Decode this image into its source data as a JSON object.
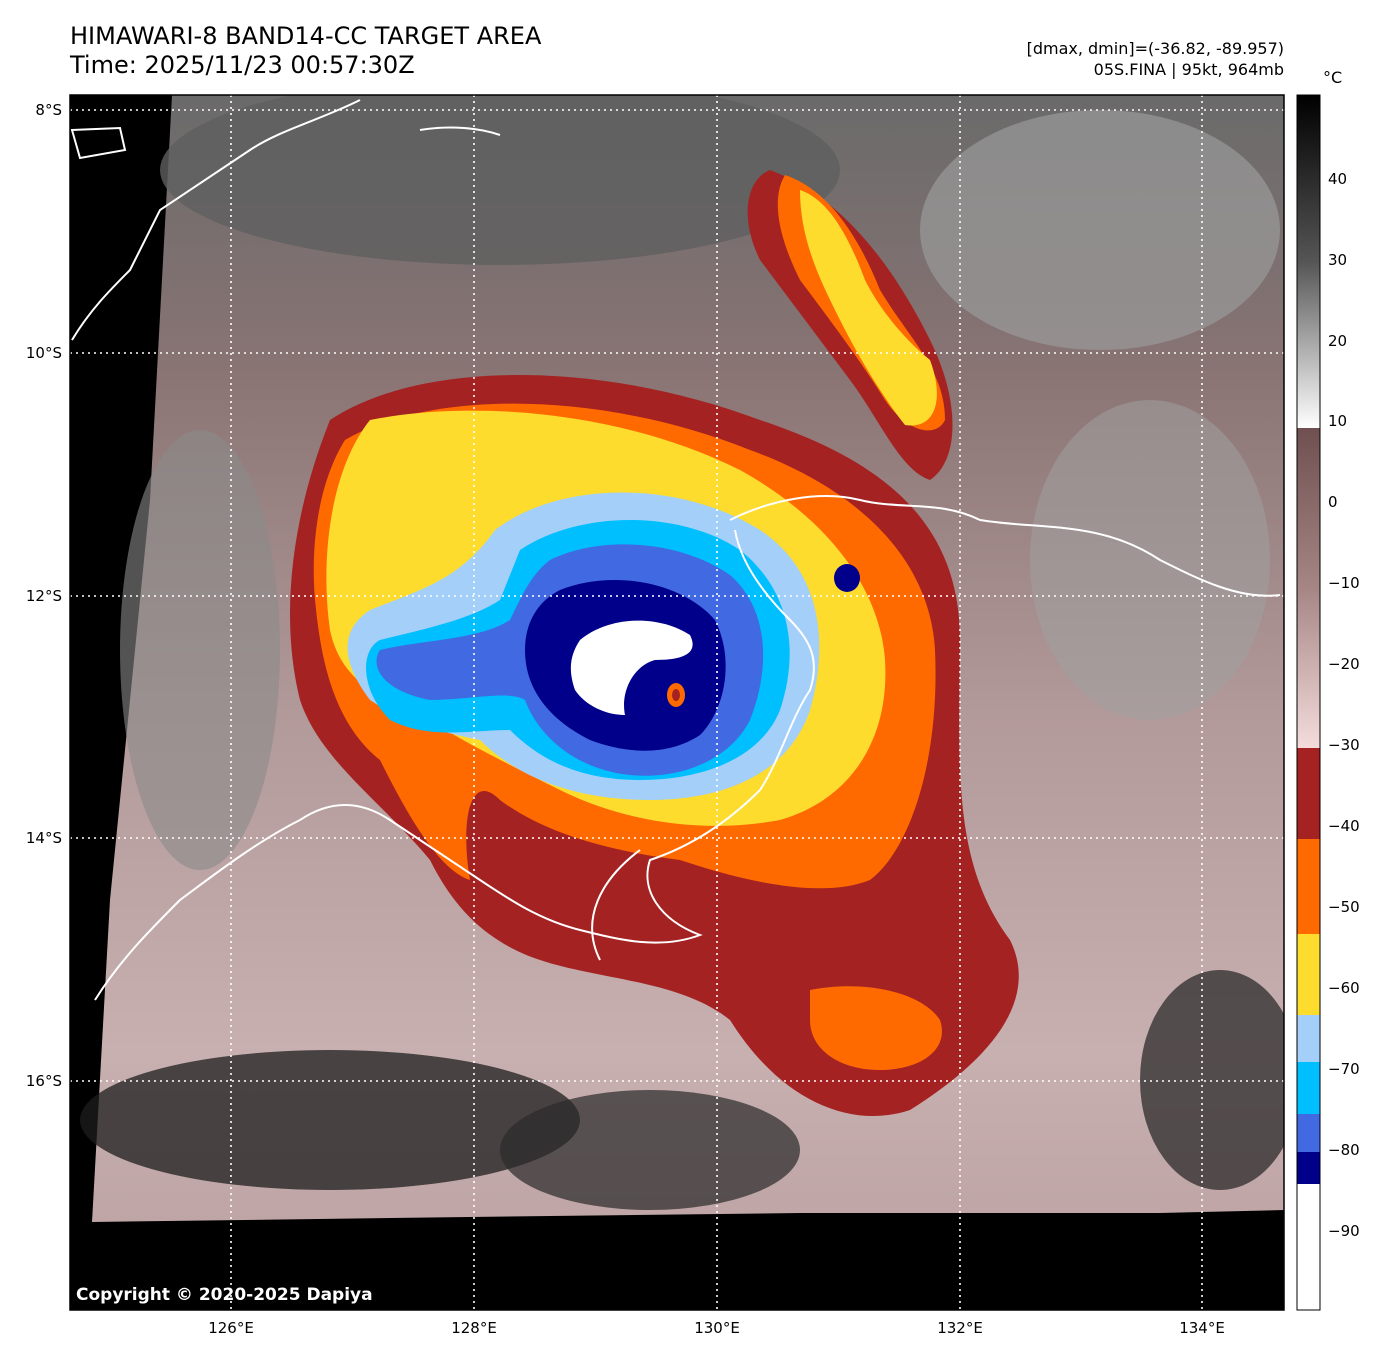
{
  "header": {
    "title": "HIMAWARI-8 BAND14-CC TARGET AREA",
    "time": "Time: 2025/11/23 00:57:30Z",
    "range": "[dmax, dmin]=(-36.82, -89.957)",
    "storm": "05S.FINA | 95kt, 964mb"
  },
  "axes": {
    "lat_labels": [
      "8°S",
      "10°S",
      "12°S",
      "14°S",
      "16°S"
    ],
    "lon_labels": [
      "126°E",
      "128°E",
      "130°E",
      "132°E",
      "134°E"
    ]
  },
  "colorbar": {
    "unit": "°C",
    "ticks": [
      "40",
      "30",
      "20",
      "10",
      "0",
      "−10",
      "−20",
      "−30",
      "−40",
      "−50",
      "−60",
      "−70",
      "−80",
      "−90"
    ]
  },
  "copyright": "Copyright © 2020-2025 Dapiya",
  "colors": {
    "dark_red": "#a52222",
    "orange": "#ff6a00",
    "yellow": "#fddc2e",
    "light_blue": "#a3cff8",
    "cyan": "#00bfff",
    "royal_blue": "#4169e1",
    "navy": "#00008b",
    "eye_white": "#ffffff"
  }
}
